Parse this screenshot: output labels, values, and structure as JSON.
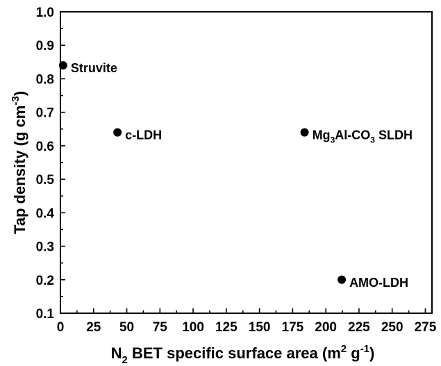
{
  "chart_data": {
    "type": "scatter",
    "title": "",
    "xlabel_parts": [
      {
        "text": "N",
        "sub": false
      },
      {
        "text": "2",
        "sub": true
      },
      {
        "text": " BET specific surface area ",
        "sub": false
      },
      {
        "text": "(m",
        "sub": false
      },
      {
        "text": "2",
        "sup": true
      },
      {
        "text": " g",
        "sub": false
      },
      {
        "text": "-1",
        "sup": true
      },
      {
        "text": ")",
        "sub": false
      }
    ],
    "ylabel_parts": [
      {
        "text": "Tap density ",
        "sub": false
      },
      {
        "text": "(g cm",
        "sub": false
      },
      {
        "text": "-3",
        "sup": true
      },
      {
        "text": ")",
        "sub": false
      }
    ],
    "xlim": [
      0,
      280
    ],
    "ylim": [
      0.1,
      1.0
    ],
    "xticks": [
      0,
      25,
      50,
      75,
      100,
      125,
      150,
      175,
      200,
      225,
      250,
      275
    ],
    "xtick_labels": [
      "0",
      "25",
      "50",
      "75",
      "100",
      "125",
      "150",
      "175",
      "200",
      "225",
      "250",
      "275"
    ],
    "yticks": [
      0.1,
      0.2,
      0.3,
      0.4,
      0.5,
      0.6,
      0.7,
      0.8,
      0.9,
      1.0
    ],
    "ytick_labels": [
      "0.1",
      "0.2",
      "0.3",
      "0.4",
      "0.5",
      "0.6",
      "0.7",
      "0.8",
      "0.9",
      "1.0"
    ],
    "grid": false,
    "points": [
      {
        "x": 2,
        "y": 0.84,
        "label_parts": [
          {
            "text": "Struvite"
          }
        ]
      },
      {
        "x": 43,
        "y": 0.64,
        "label_parts": [
          {
            "text": "c-LDH"
          }
        ]
      },
      {
        "x": 184,
        "y": 0.64,
        "label_parts": [
          {
            "text": "Mg"
          },
          {
            "text": "3",
            "sub": true
          },
          {
            "text": "Al-CO"
          },
          {
            "text": "3",
            "sub": true
          },
          {
            "text": " SLDH"
          }
        ]
      },
      {
        "x": 212,
        "y": 0.2,
        "label_parts": [
          {
            "text": "AMO-LDH"
          }
        ]
      }
    ],
    "colors": {
      "marker": "#000000",
      "axis": "#000000"
    }
  }
}
